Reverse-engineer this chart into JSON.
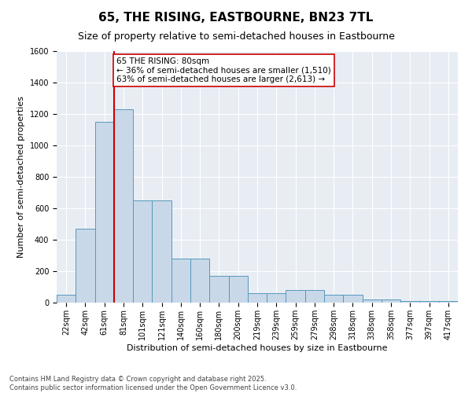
{
  "title": "65, THE RISING, EASTBOURNE, BN23 7TL",
  "subtitle": "Size of property relative to semi-detached houses in Eastbourne",
  "xlabel": "Distribution of semi-detached houses by size in Eastbourne",
  "ylabel": "Number of semi-detached properties",
  "categories": [
    "22sqm",
    "42sqm",
    "61sqm",
    "81sqm",
    "101sqm",
    "121sqm",
    "140sqm",
    "160sqm",
    "180sqm",
    "200sqm",
    "219sqm",
    "239sqm",
    "259sqm",
    "279sqm",
    "298sqm",
    "318sqm",
    "338sqm",
    "358sqm",
    "377sqm",
    "397sqm",
    "417sqm"
  ],
  "values": [
    50,
    470,
    1150,
    1230,
    650,
    650,
    280,
    280,
    170,
    170,
    60,
    60,
    80,
    80,
    50,
    50,
    20,
    20,
    10,
    10,
    10
  ],
  "bar_color": "#c8d8e8",
  "bar_edge_color": "#5599bb",
  "vline_x_index": 3,
  "vline_color": "#cc0000",
  "annotation_text": "65 THE RISING: 80sqm\n← 36% of semi-detached houses are smaller (1,510)\n63% of semi-detached houses are larger (2,613) →",
  "annotation_box_color": "#cc0000",
  "ylim": [
    0,
    1600
  ],
  "yticks": [
    0,
    200,
    400,
    600,
    800,
    1000,
    1200,
    1400,
    1600
  ],
  "background_color": "#e8edf4",
  "footer": "Contains HM Land Registry data © Crown copyright and database right 2025.\nContains public sector information licensed under the Open Government Licence v3.0.",
  "title_fontsize": 11,
  "subtitle_fontsize": 9,
  "axis_label_fontsize": 8,
  "tick_fontsize": 7,
  "annotation_fontsize": 7.5,
  "footer_fontsize": 6
}
